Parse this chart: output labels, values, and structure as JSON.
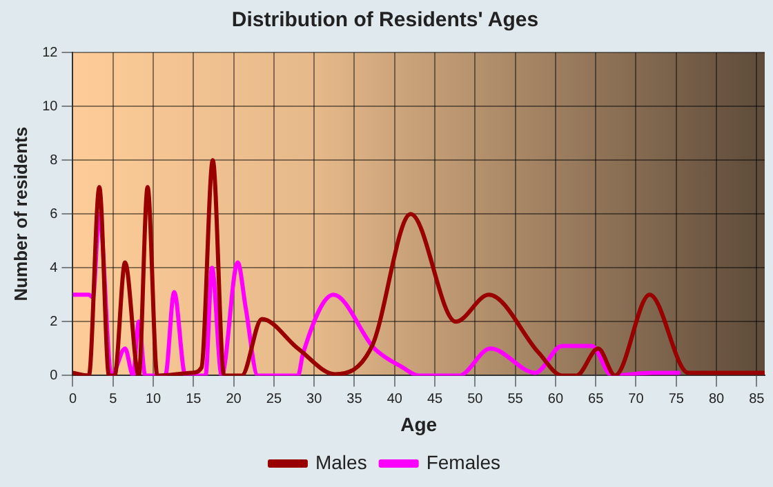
{
  "chart_data": {
    "type": "line",
    "title": "Distribution of Residents' Ages",
    "xlabel": "Age",
    "ylabel": "Number of residents",
    "xlim": [
      0,
      86
    ],
    "xticks": [
      0,
      5,
      10,
      15,
      20,
      25,
      30,
      35,
      40,
      45,
      50,
      55,
      60,
      65,
      70,
      75,
      80,
      85
    ],
    "ylim": [
      0,
      12
    ],
    "yticks": [
      0,
      2,
      4,
      6,
      8,
      10,
      12
    ],
    "grid": true,
    "legend": "bottom",
    "marker": "none",
    "line_style": "solid",
    "series": [
      {
        "name": "Males",
        "color": "#990000",
        "x": [
          0,
          2,
          3.3,
          4.5,
          5.2,
          6.5,
          8.2,
          9.3,
          10.5,
          14.8,
          16,
          17.4,
          18.8,
          21,
          23.5,
          28,
          32.6,
          37.2,
          42,
          47.6,
          51.7,
          57.9,
          60.8,
          62.6,
          65.3,
          67.4,
          71.7,
          76.5,
          86
        ],
        "values": [
          0.1,
          0,
          7,
          0,
          0,
          4.2,
          0,
          7,
          0,
          0.1,
          0.3,
          8,
          0,
          0,
          2.1,
          1,
          0.05,
          1.1,
          6,
          2,
          3,
          0.85,
          0,
          0,
          1,
          0,
          3,
          0.1,
          0.1
        ]
      },
      {
        "name": "Females",
        "color": "#ff00ff",
        "x": [
          0,
          2,
          2.5,
          3.3,
          4.8,
          6.5,
          7.5,
          8.2,
          9,
          11.5,
          12.6,
          14,
          16.5,
          17.3,
          18.5,
          20.5,
          21.5,
          23,
          28,
          28.6,
          32.4,
          37.5,
          41,
          43,
          48,
          51.9,
          57.5,
          60.8,
          64.5,
          67,
          72,
          75.5
        ],
        "values": [
          3,
          3,
          2.9,
          6,
          0,
          1,
          0,
          2,
          0,
          0,
          3.1,
          0,
          0,
          4,
          0,
          4.2,
          2.5,
          0,
          0,
          0.8,
          3,
          1,
          0.3,
          0,
          0,
          1,
          0.1,
          1.1,
          1.1,
          0,
          0.1,
          0.1
        ]
      }
    ]
  }
}
